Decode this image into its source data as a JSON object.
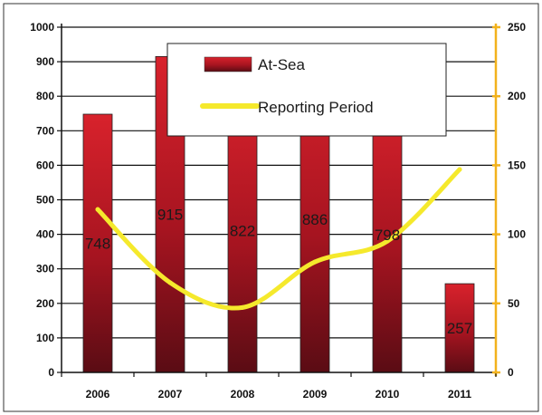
{
  "chart_data": {
    "type": "bar",
    "categories": [
      "2006",
      "2007",
      "2008",
      "2009",
      "2010",
      "2011"
    ],
    "series": [
      {
        "name": "At-Sea",
        "type": "bar",
        "axis": "left",
        "color": "#b0141c",
        "values": [
          748,
          915,
          822,
          886,
          798,
          257
        ],
        "data_labels": [
          "748",
          "915",
          "822",
          "886",
          "798",
          "257"
        ]
      },
      {
        "name": "Reporting Period",
        "type": "line",
        "axis": "right",
        "color": "#f5e92c",
        "values": [
          118,
          65,
          47,
          80,
          95,
          147
        ]
      }
    ],
    "left_axis": {
      "ylim": [
        0,
        1000
      ],
      "ticks": [
        "0",
        "100",
        "200",
        "300",
        "400",
        "500",
        "600",
        "700",
        "800",
        "900",
        "1000"
      ]
    },
    "right_axis": {
      "ylim": [
        0,
        250
      ],
      "ticks": [
        "0",
        "50",
        "100",
        "150",
        "200",
        "250"
      ],
      "color": "#f2b21c"
    },
    "legend_position": "top-center",
    "grid": "horizontal"
  }
}
